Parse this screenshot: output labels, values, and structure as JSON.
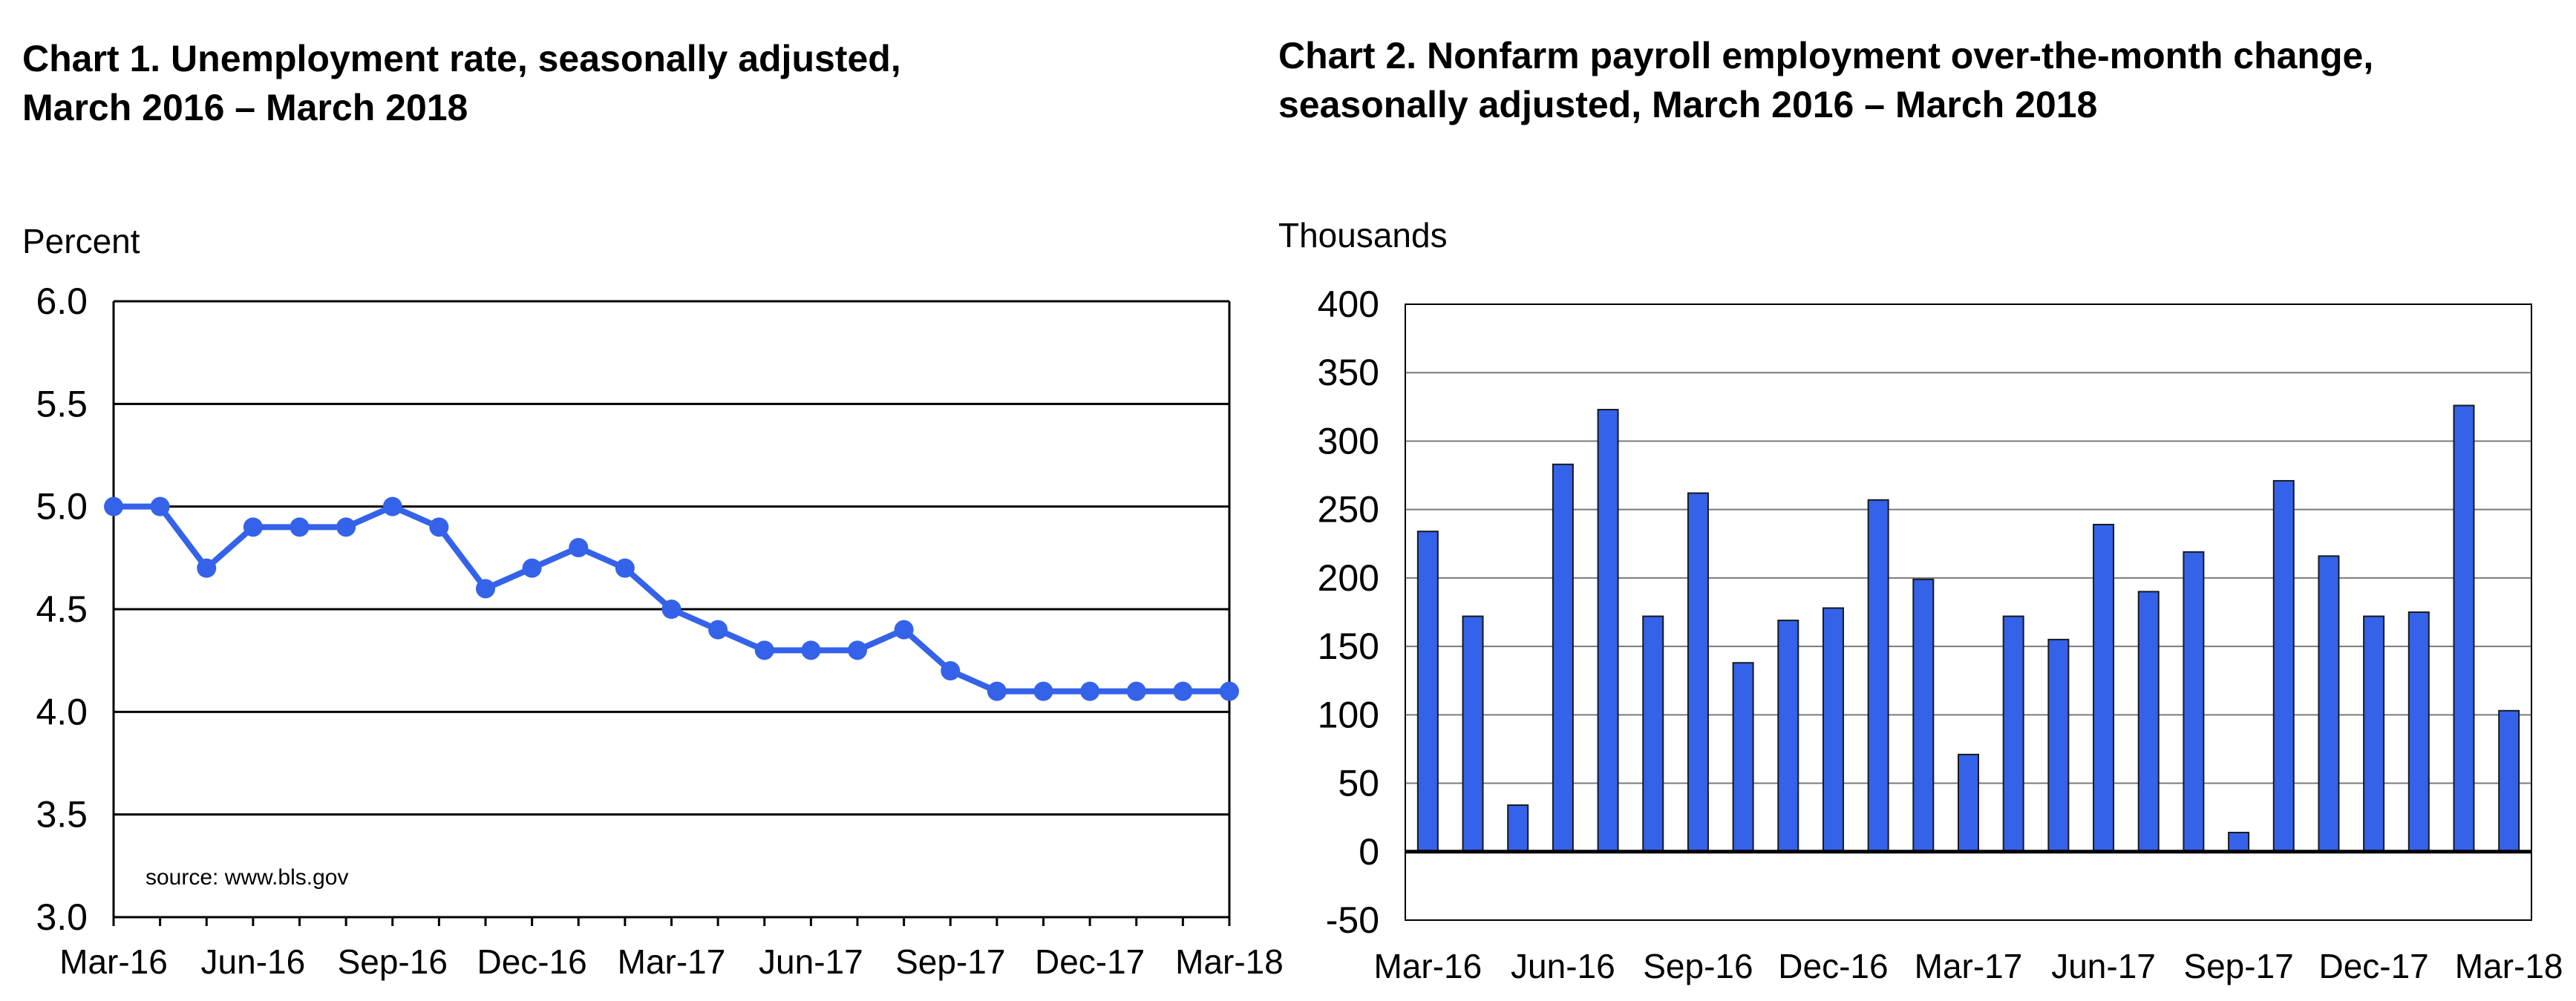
{
  "chart_data": [
    {
      "type": "line",
      "title": "Chart 1. Unemployment rate, seasonally adjusted, March 2016 – March 2018",
      "title_lines": [
        "Chart 1. Unemployment rate, seasonally adjusted,",
        "March 2016 – March 2018"
      ],
      "ylabel": "Percent",
      "ylim": [
        3.0,
        6.0
      ],
      "y_ticks": [
        "6.0",
        "5.5",
        "5.0",
        "4.5",
        "4.0",
        "3.5",
        "3.0"
      ],
      "x_tick_labels": [
        "Mar-16",
        "Jun-16",
        "Sep-16",
        "Dec-16",
        "Mar-17",
        "Jun-17",
        "Sep-17",
        "Dec-17",
        "Mar-18"
      ],
      "categories": [
        "Mar-16",
        "Apr-16",
        "May-16",
        "Jun-16",
        "Jul-16",
        "Aug-16",
        "Sep-16",
        "Oct-16",
        "Nov-16",
        "Dec-16",
        "Jan-17",
        "Feb-17",
        "Mar-17",
        "Apr-17",
        "May-17",
        "Jun-17",
        "Jul-17",
        "Aug-17",
        "Sep-17",
        "Oct-17",
        "Nov-17",
        "Dec-17",
        "Jan-18",
        "Feb-18",
        "Mar-18"
      ],
      "values": [
        5.0,
        5.0,
        4.7,
        4.9,
        4.9,
        4.9,
        5.0,
        4.9,
        4.6,
        4.7,
        4.8,
        4.7,
        4.5,
        4.4,
        4.3,
        4.3,
        4.3,
        4.4,
        4.2,
        4.1,
        4.1,
        4.1,
        4.1,
        4.1,
        4.1
      ],
      "annotation": "source: www.bls.gov",
      "grid": true,
      "color": "#3462e9"
    },
    {
      "type": "bar",
      "title": "Chart 2. Nonfarm payroll employment over-the-month change, seasonally adjusted, March 2016 – March 2018",
      "title_lines": [
        "Chart 2. Nonfarm payroll employment over-the-month change,",
        "seasonally adjusted, March 2016 – March 2018"
      ],
      "ylabel": "Thousands",
      "ylim": [
        -50,
        400
      ],
      "y_ticks": [
        "400",
        "350",
        "300",
        "250",
        "200",
        "150",
        "100",
        "50",
        "0",
        "-50"
      ],
      "x_tick_labels": [
        "Mar-16",
        "Jun-16",
        "Sep-16",
        "Dec-16",
        "Mar-17",
        "Jun-17",
        "Sep-17",
        "Dec-17",
        "Mar-18"
      ],
      "categories": [
        "Mar-16",
        "Apr-16",
        "May-16",
        "Jun-16",
        "Jul-16",
        "Aug-16",
        "Sep-16",
        "Oct-16",
        "Nov-16",
        "Dec-16",
        "Jan-17",
        "Feb-17",
        "Mar-17",
        "Apr-17",
        "May-17",
        "Jun-17",
        "Jul-17",
        "Aug-17",
        "Sep-17",
        "Oct-17",
        "Nov-17",
        "Dec-17",
        "Jan-18",
        "Feb-18",
        "Mar-18"
      ],
      "values": [
        234,
        172,
        34,
        283,
        323,
        172,
        262,
        138,
        169,
        178,
        257,
        199,
        71,
        172,
        155,
        239,
        190,
        219,
        14,
        271,
        216,
        172,
        175,
        326,
        103
      ],
      "grid": true,
      "color": "#3462e9"
    }
  ]
}
